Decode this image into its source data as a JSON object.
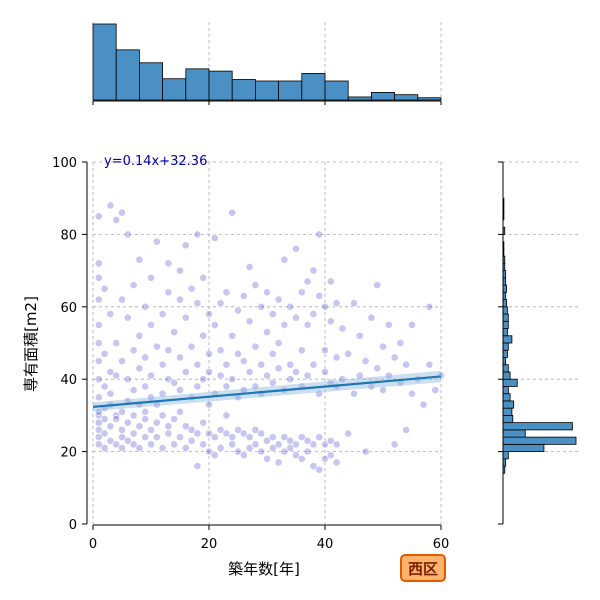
{
  "chart_data": {
    "type": "scatter",
    "xlabel": "築年数[年]",
    "ylabel": "専有面積[m2]",
    "xlim": [
      0,
      60
    ],
    "ylim": [
      0,
      100
    ],
    "xticks": [
      0,
      20,
      40,
      60
    ],
    "yticks": [
      0,
      20,
      40,
      60,
      80,
      100
    ],
    "grid": true,
    "badge": "西区",
    "regression": {
      "label": "y=0.14x+32.36",
      "slope": 0.14,
      "intercept": 32.36,
      "x_range": [
        0,
        60
      ],
      "color": "#1f77b4"
    },
    "point_color": "#3333cc",
    "hist_color": "#4a90c4",
    "scatter_points": [
      [
        1,
        28
      ],
      [
        1,
        30
      ],
      [
        1,
        24
      ],
      [
        1,
        22
      ],
      [
        1,
        35
      ],
      [
        1,
        40
      ],
      [
        1,
        55
      ],
      [
        1,
        62
      ],
      [
        1,
        68
      ],
      [
        1,
        72
      ],
      [
        1,
        85
      ],
      [
        1,
        45
      ],
      [
        1,
        50
      ],
      [
        1,
        31
      ],
      [
        1,
        26
      ],
      [
        2,
        29
      ],
      [
        2,
        32
      ],
      [
        2,
        21
      ],
      [
        2,
        47
      ],
      [
        2,
        65
      ],
      [
        2,
        38
      ],
      [
        2,
        25
      ],
      [
        3,
        27
      ],
      [
        3,
        33
      ],
      [
        3,
        23
      ],
      [
        3,
        58
      ],
      [
        3,
        88
      ],
      [
        3,
        42
      ],
      [
        3,
        36
      ],
      [
        4,
        30
      ],
      [
        4,
        22
      ],
      [
        4,
        50
      ],
      [
        4,
        84
      ],
      [
        4,
        29
      ],
      [
        4,
        41
      ],
      [
        5,
        26
      ],
      [
        5,
        31
      ],
      [
        5,
        24
      ],
      [
        5,
        62
      ],
      [
        5,
        86
      ],
      [
        5,
        45
      ],
      [
        5,
        21
      ],
      [
        6,
        28
      ],
      [
        6,
        34
      ],
      [
        6,
        23
      ],
      [
        6,
        57
      ],
      [
        6,
        40
      ],
      [
        6,
        80
      ],
      [
        7,
        25
      ],
      [
        7,
        30
      ],
      [
        7,
        22
      ],
      [
        7,
        48
      ],
      [
        7,
        66
      ],
      [
        7,
        37
      ],
      [
        8,
        27
      ],
      [
        8,
        33
      ],
      [
        8,
        21
      ],
      [
        8,
        52
      ],
      [
        8,
        73
      ],
      [
        8,
        43
      ],
      [
        9,
        29
      ],
      [
        9,
        24
      ],
      [
        9,
        31
      ],
      [
        9,
        60
      ],
      [
        9,
        46
      ],
      [
        9,
        38
      ],
      [
        10,
        26
      ],
      [
        10,
        22
      ],
      [
        10,
        35
      ],
      [
        10,
        55
      ],
      [
        10,
        68
      ],
      [
        10,
        41
      ],
      [
        11,
        28
      ],
      [
        11,
        24
      ],
      [
        11,
        49
      ],
      [
        11,
        78
      ],
      [
        11,
        33
      ],
      [
        12,
        30
      ],
      [
        12,
        21
      ],
      [
        12,
        58
      ],
      [
        12,
        44
      ],
      [
        12,
        36
      ],
      [
        13,
        25
      ],
      [
        13,
        27
      ],
      [
        13,
        64
      ],
      [
        13,
        72
      ],
      [
        13,
        48
      ],
      [
        13,
        40
      ],
      [
        14,
        29
      ],
      [
        14,
        22
      ],
      [
        14,
        53
      ],
      [
        14,
        39
      ],
      [
        15,
        24
      ],
      [
        15,
        31
      ],
      [
        15,
        46
      ],
      [
        15,
        62
      ],
      [
        15,
        70
      ],
      [
        15,
        37
      ],
      [
        16,
        27
      ],
      [
        16,
        21
      ],
      [
        16,
        57
      ],
      [
        16,
        77
      ],
      [
        16,
        42
      ],
      [
        17,
        26
      ],
      [
        17,
        23
      ],
      [
        17,
        49
      ],
      [
        17,
        65
      ],
      [
        17,
        35
      ],
      [
        18,
        25
      ],
      [
        18,
        16
      ],
      [
        18,
        44
      ],
      [
        18,
        61
      ],
      [
        18,
        80
      ],
      [
        18,
        38
      ],
      [
        19,
        28
      ],
      [
        19,
        22
      ],
      [
        19,
        52
      ],
      [
        19,
        68
      ],
      [
        19,
        40
      ],
      [
        20,
        25
      ],
      [
        20,
        20
      ],
      [
        20,
        47
      ],
      [
        20,
        58
      ],
      [
        20,
        33
      ],
      [
        20,
        42
      ],
      [
        21,
        24
      ],
      [
        21,
        19
      ],
      [
        21,
        55
      ],
      [
        21,
        79
      ],
      [
        21,
        36
      ],
      [
        22,
        26
      ],
      [
        22,
        21
      ],
      [
        22,
        61
      ],
      [
        22,
        48
      ],
      [
        22,
        41
      ],
      [
        23,
        25
      ],
      [
        23,
        30
      ],
      [
        23,
        44
      ],
      [
        23,
        64
      ],
      [
        23,
        38
      ],
      [
        24,
        24
      ],
      [
        24,
        22
      ],
      [
        24,
        52
      ],
      [
        24,
        86
      ],
      [
        24,
        40
      ],
      [
        25,
        26
      ],
      [
        25,
        20
      ],
      [
        25,
        59
      ],
      [
        25,
        47
      ],
      [
        25,
        35
      ],
      [
        26,
        25
      ],
      [
        26,
        19
      ],
      [
        26,
        63
      ],
      [
        26,
        45
      ],
      [
        26,
        37
      ],
      [
        27,
        24
      ],
      [
        27,
        21
      ],
      [
        27,
        56
      ],
      [
        27,
        71
      ],
      [
        27,
        42
      ],
      [
        28,
        26
      ],
      [
        28,
        22
      ],
      [
        28,
        49
      ],
      [
        28,
        66
      ],
      [
        28,
        38
      ],
      [
        29,
        25
      ],
      [
        29,
        20
      ],
      [
        29,
        60
      ],
      [
        29,
        44
      ],
      [
        29,
        36
      ],
      [
        30,
        23
      ],
      [
        30,
        18
      ],
      [
        30,
        53
      ],
      [
        30,
        64
      ],
      [
        30,
        41
      ],
      [
        31,
        24
      ],
      [
        31,
        21
      ],
      [
        31,
        58
      ],
      [
        31,
        47
      ],
      [
        31,
        39
      ],
      [
        32,
        22
      ],
      [
        32,
        17
      ],
      [
        32,
        62
      ],
      [
        32,
        50
      ],
      [
        32,
        43
      ],
      [
        33,
        24
      ],
      [
        33,
        20
      ],
      [
        33,
        55
      ],
      [
        33,
        73
      ],
      [
        33,
        37
      ],
      [
        34,
        23
      ],
      [
        34,
        21
      ],
      [
        34,
        60
      ],
      [
        34,
        44
      ],
      [
        34,
        40
      ],
      [
        35,
        22
      ],
      [
        35,
        19
      ],
      [
        35,
        57
      ],
      [
        35,
        76
      ],
      [
        35,
        42
      ],
      [
        36,
        24
      ],
      [
        36,
        18
      ],
      [
        36,
        64
      ],
      [
        36,
        48
      ],
      [
        36,
        38
      ],
      [
        37,
        23
      ],
      [
        37,
        20
      ],
      [
        37,
        55
      ],
      [
        37,
        67
      ],
      [
        37,
        41
      ],
      [
        38,
        22
      ],
      [
        38,
        16
      ],
      [
        38,
        58
      ],
      [
        38,
        70
      ],
      [
        38,
        44
      ],
      [
        39,
        24
      ],
      [
        39,
        15
      ],
      [
        39,
        63
      ],
      [
        39,
        80
      ],
      [
        39,
        36
      ],
      [
        40,
        22
      ],
      [
        40,
        18
      ],
      [
        40,
        60
      ],
      [
        40,
        48
      ],
      [
        40,
        42
      ],
      [
        41,
        23
      ],
      [
        41,
        19
      ],
      [
        41,
        56
      ],
      [
        41,
        67
      ],
      [
        41,
        39
      ],
      [
        42,
        22
      ],
      [
        42,
        17
      ],
      [
        42,
        61
      ],
      [
        42,
        46
      ],
      [
        42,
        38
      ],
      [
        43,
        40
      ],
      [
        43,
        54
      ],
      [
        44,
        25
      ],
      [
        44,
        47
      ],
      [
        45,
        36
      ],
      [
        45,
        61
      ],
      [
        46,
        41
      ],
      [
        46,
        52
      ],
      [
        47,
        20
      ],
      [
        47,
        45
      ],
      [
        48,
        38
      ],
      [
        48,
        57
      ],
      [
        49,
        43
      ],
      [
        49,
        66
      ],
      [
        50,
        49
      ],
      [
        50,
        37
      ],
      [
        51,
        41
      ],
      [
        51,
        55
      ],
      [
        52,
        22
      ],
      [
        52,
        46
      ],
      [
        53,
        39
      ],
      [
        53,
        50
      ],
      [
        54,
        44
      ],
      [
        54,
        26
      ],
      [
        55,
        36
      ],
      [
        55,
        55
      ],
      [
        56,
        40
      ],
      [
        57,
        33
      ],
      [
        58,
        60
      ],
      [
        58,
        44
      ],
      [
        59,
        37
      ],
      [
        60,
        41
      ]
    ],
    "x_hist": {
      "bins": [
        0,
        4,
        8,
        12,
        16,
        20,
        24,
        28,
        32,
        36,
        40,
        44,
        48,
        52,
        56,
        60
      ],
      "counts": [
        100,
        66,
        49,
        28,
        41,
        38,
        27,
        25,
        25,
        35,
        25,
        4,
        10,
        7,
        3
      ]
    },
    "y_hist": {
      "bins": [
        14,
        16,
        18,
        20,
        22,
        24,
        26,
        28,
        30,
        32,
        34,
        36,
        38,
        40,
        42,
        44,
        46,
        48,
        50,
        52,
        54,
        56,
        58,
        60,
        62,
        64,
        66,
        68,
        70,
        72,
        74,
        76,
        78,
        80,
        82,
        84,
        86,
        88,
        90
      ],
      "counts": [
        2,
        3,
        6,
        46,
        82,
        25,
        78,
        11,
        10,
        12,
        8,
        6,
        16,
        8,
        6,
        3,
        5,
        6,
        10,
        5,
        6,
        6,
        5,
        4,
        3,
        4,
        3,
        3,
        2,
        2,
        1,
        1,
        0,
        2,
        0,
        1,
        1,
        1,
        0
      ]
    }
  }
}
